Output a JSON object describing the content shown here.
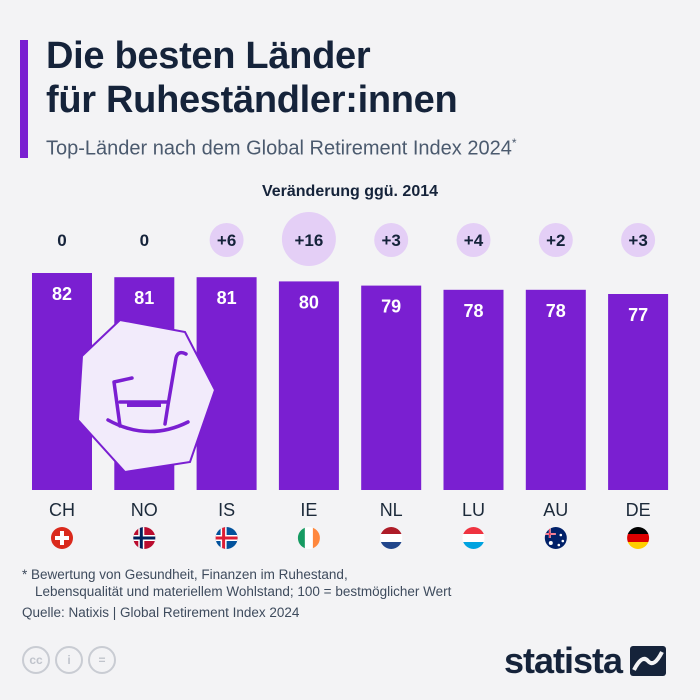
{
  "title": {
    "line1": "Die besten Länder",
    "line2": "für Ruheständler:innen"
  },
  "subtitle": "Top-Länder nach dem Global Retirement Index 2024",
  "subtitle_marker": "*",
  "colors": {
    "bar": "#7a1fd1",
    "bubble": "#e4cff6",
    "text": "#1c2a3a",
    "background": "#f3f3f5"
  },
  "chart_data": {
    "type": "bar",
    "change_label": "Veränderung ggü. 2014",
    "categories": [
      "CH",
      "NO",
      "IS",
      "IE",
      "NL",
      "LU",
      "AU",
      "DE"
    ],
    "values": [
      82,
      81,
      81,
      80,
      79,
      78,
      78,
      77
    ],
    "changes": [
      "0",
      "0",
      "+6",
      "+16",
      "+3",
      "+4",
      "+2",
      "+3"
    ],
    "flags": [
      "switzerland-flag",
      "norway-flag",
      "iceland-flag",
      "ireland-flag",
      "netherlands-flag",
      "luxembourg-flag",
      "australia-flag",
      "germany-flag"
    ],
    "ylim": [
      0,
      100
    ]
  },
  "footnote": {
    "line1": "* Bewertung von Gesundheit, Finanzen im Ruhestand,",
    "line2": "Lebensqualität und materiellem Wohlstand; 100 = bestmöglicher Wert"
  },
  "source": "Quelle: Natixis | Global Retirement Index 2024",
  "brand": "statista",
  "license_icons": [
    "cc-icon",
    "attribution-icon",
    "no-derivatives-icon"
  ]
}
